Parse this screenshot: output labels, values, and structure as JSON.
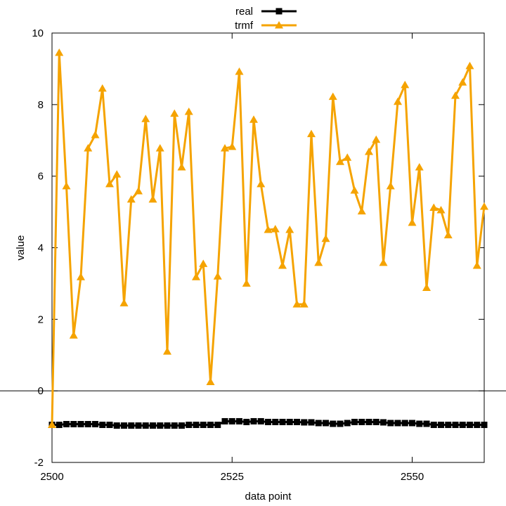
{
  "chart_data": {
    "type": "line",
    "title": "",
    "xlabel": "data point",
    "ylabel": "value",
    "xlim": [
      2500,
      2560
    ],
    "ylim": [
      -2,
      10
    ],
    "x_ticks": [
      "2500",
      "2525",
      "2550"
    ],
    "y_ticks": [
      "-2",
      "0",
      "2",
      "4",
      "6",
      "8",
      "10"
    ],
    "grid": false,
    "zero_line": true,
    "legend_position": "top-center",
    "x": [
      2500,
      2501,
      2502,
      2503,
      2504,
      2505,
      2506,
      2507,
      2508,
      2509,
      2510,
      2511,
      2512,
      2513,
      2514,
      2515,
      2516,
      2517,
      2518,
      2519,
      2520,
      2521,
      2522,
      2523,
      2524,
      2525,
      2526,
      2527,
      2528,
      2529,
      2530,
      2531,
      2532,
      2533,
      2534,
      2535,
      2536,
      2537,
      2538,
      2539,
      2540,
      2541,
      2542,
      2543,
      2544,
      2545,
      2546,
      2547,
      2548,
      2549,
      2550,
      2551,
      2552,
      2553,
      2554,
      2555,
      2556,
      2557,
      2558,
      2559,
      2560
    ],
    "series": [
      {
        "name": "real",
        "color": "#000000",
        "marker": "square",
        "values": [
          -0.95,
          -0.95,
          -0.93,
          -0.93,
          -0.93,
          -0.93,
          -0.93,
          -0.95,
          -0.95,
          -0.97,
          -0.97,
          -0.97,
          -0.97,
          -0.97,
          -0.97,
          -0.97,
          -0.97,
          -0.97,
          -0.97,
          -0.95,
          -0.95,
          -0.95,
          -0.95,
          -0.95,
          -0.85,
          -0.85,
          -0.85,
          -0.87,
          -0.85,
          -0.85,
          -0.87,
          -0.87,
          -0.87,
          -0.87,
          -0.87,
          -0.88,
          -0.88,
          -0.9,
          -0.9,
          -0.92,
          -0.92,
          -0.9,
          -0.87,
          -0.87,
          -0.87,
          -0.87,
          -0.88,
          -0.9,
          -0.9,
          -0.9,
          -0.9,
          -0.92,
          -0.92,
          -0.95,
          -0.95,
          -0.95,
          -0.95,
          -0.95,
          -0.95,
          -0.95,
          -0.95
        ]
      },
      {
        "name": "trmf",
        "color": "#f5a300",
        "marker": "triangle",
        "values": [
          -0.95,
          9.45,
          5.72,
          1.55,
          3.18,
          6.78,
          7.15,
          8.45,
          5.78,
          6.05,
          2.45,
          5.35,
          5.58,
          7.6,
          5.35,
          6.78,
          1.1,
          7.75,
          6.25,
          7.8,
          3.18,
          3.55,
          0.25,
          3.2,
          6.78,
          6.82,
          8.92,
          3.0,
          7.58,
          5.78,
          4.5,
          4.52,
          3.5,
          4.5,
          2.42,
          2.42,
          7.18,
          3.58,
          4.25,
          8.22,
          6.4,
          6.52,
          5.6,
          5.02,
          6.68,
          7.02,
          3.58,
          5.72,
          8.08,
          8.55,
          4.7,
          6.25,
          2.88,
          5.12,
          5.05,
          4.35,
          8.25,
          8.62,
          9.08,
          3.5,
          5.15
        ]
      }
    ]
  }
}
